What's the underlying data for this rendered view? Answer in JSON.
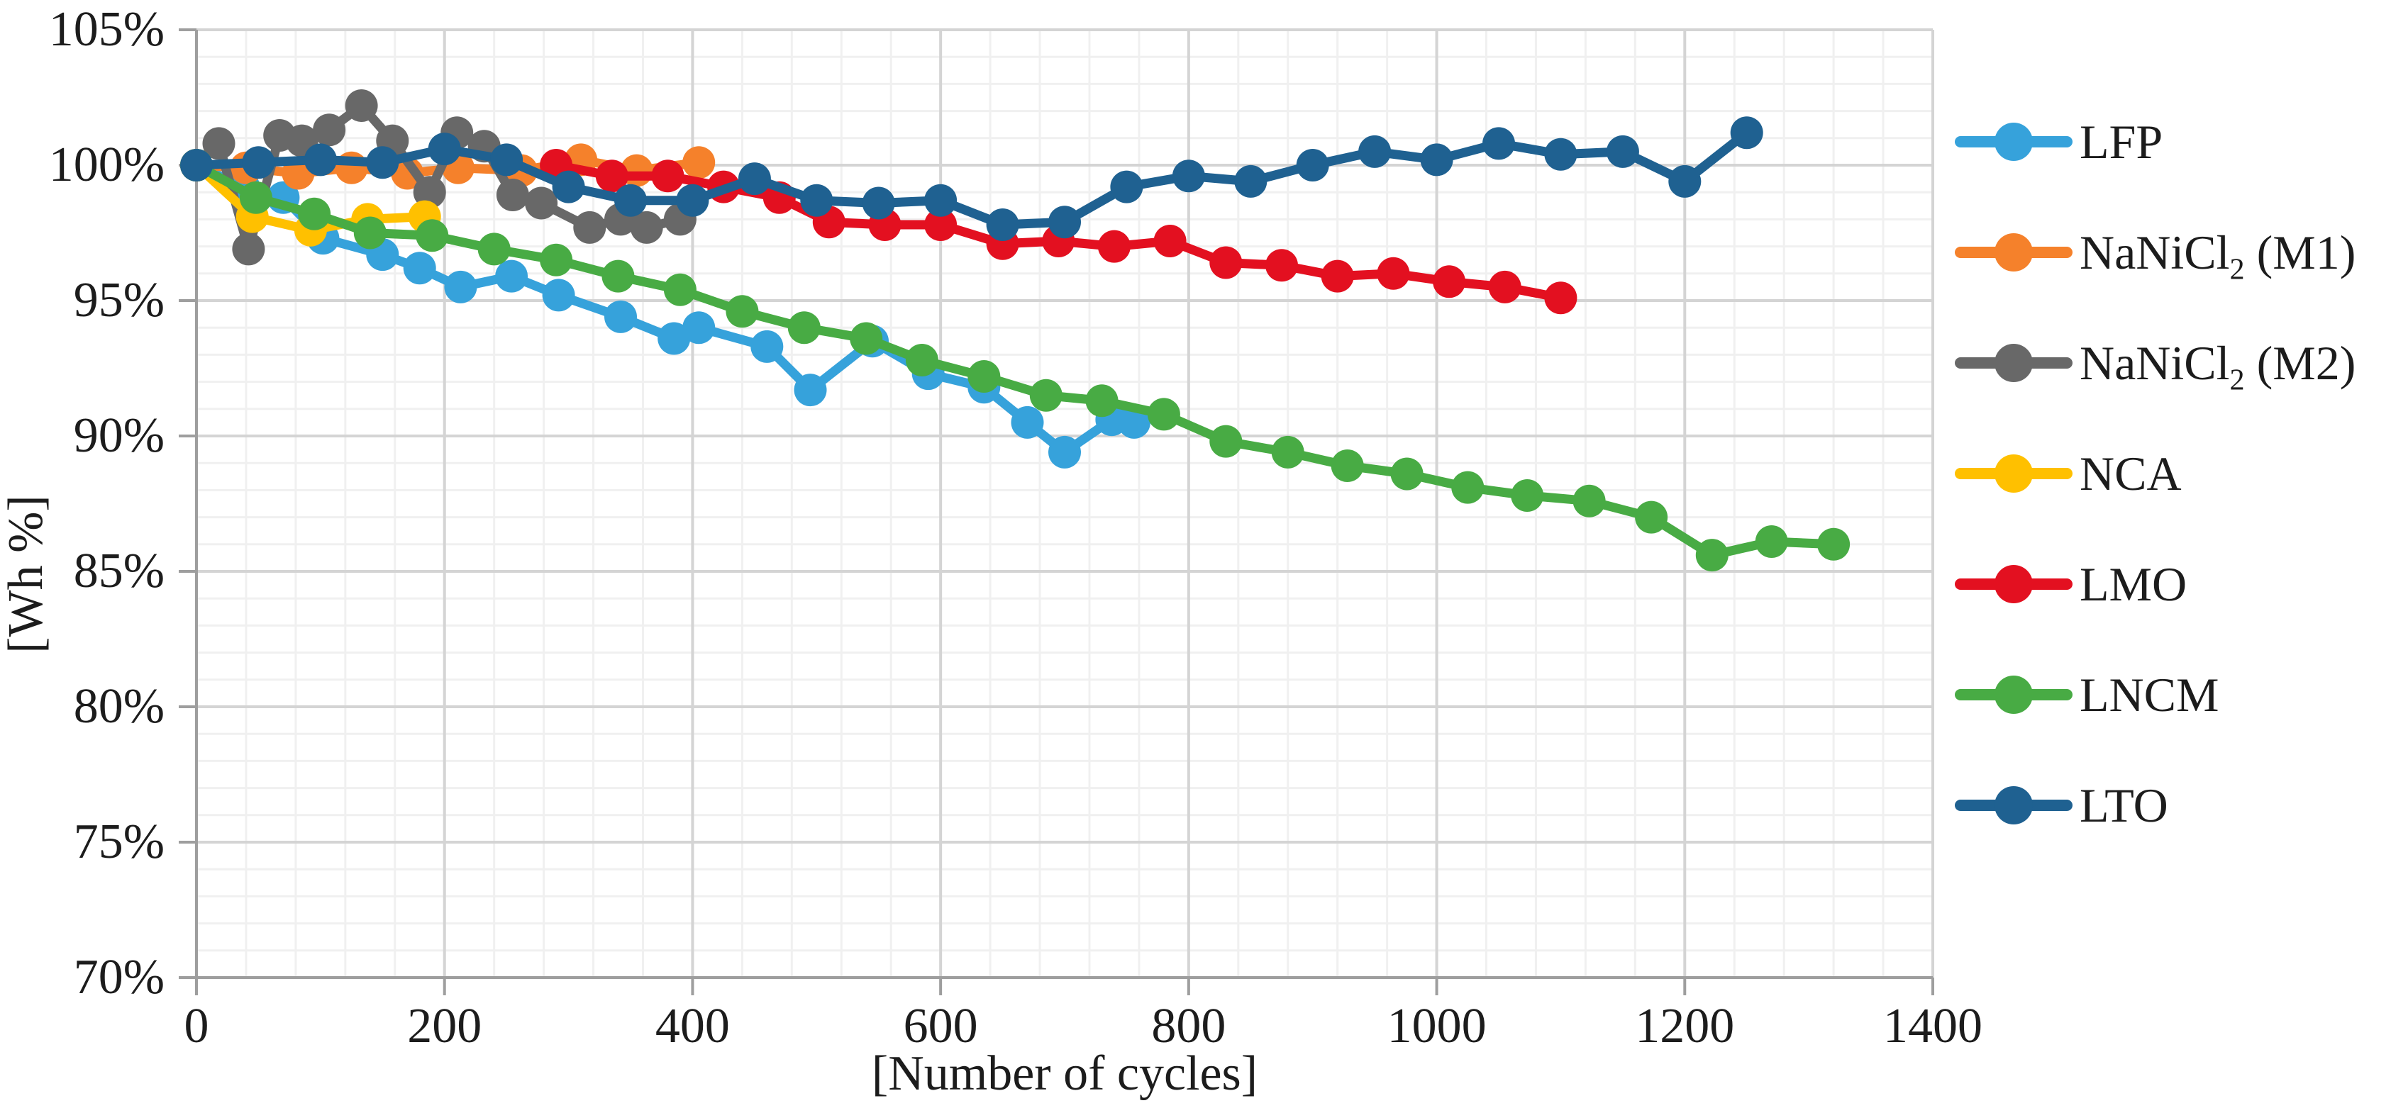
{
  "chart_data": {
    "type": "line",
    "title": "",
    "xlabel": "[Number of cycles]",
    "ylabel": "[Wh %]",
    "xlim": [
      0,
      1400
    ],
    "ylim": [
      70,
      105
    ],
    "x_ticks": [
      0,
      200,
      400,
      600,
      800,
      1000,
      1200,
      1400
    ],
    "y_ticks": [
      105,
      100,
      95,
      90,
      85,
      80,
      75,
      70
    ],
    "y_tick_suffix": "%",
    "x_minor_step": 40,
    "y_minor_step": 1,
    "grid": "major and minor, both axes",
    "legend_position": "right",
    "series": [
      {
        "name": "LFP",
        "label": "LFP",
        "label_pre": "LFP",
        "label_sub": "",
        "label_post": "",
        "color": "#36A2DB",
        "points": [
          [
            0,
            100
          ],
          [
            38,
            99.2
          ],
          [
            70,
            98.8
          ],
          [
            102,
            97.3
          ],
          [
            150,
            96.7
          ],
          [
            180,
            96.2
          ],
          [
            213,
            95.5
          ],
          [
            254,
            95.9
          ],
          [
            292,
            95.2
          ],
          [
            342,
            94.4
          ],
          [
            385,
            93.6
          ],
          [
            405,
            94.0
          ],
          [
            460,
            93.3
          ],
          [
            495,
            91.7
          ],
          [
            545,
            93.5
          ],
          [
            590,
            92.3
          ],
          [
            635,
            91.8
          ],
          [
            670,
            90.5
          ],
          [
            700,
            89.4
          ],
          [
            738,
            90.6
          ],
          [
            756,
            90.5
          ]
        ]
      },
      {
        "name": "NaNiCl2 (M1)",
        "label": "NaNiCl2 (M1)",
        "label_pre": "NaNiCl",
        "label_sub": "2",
        "label_post": " (M1)",
        "color": "#F5812B",
        "points": [
          [
            0,
            100
          ],
          [
            40,
            99.9
          ],
          [
            82,
            99.7
          ],
          [
            125,
            99.9
          ],
          [
            170,
            99.7
          ],
          [
            211,
            99.9
          ],
          [
            262,
            99.8
          ],
          [
            310,
            100.2
          ],
          [
            355,
            99.8
          ],
          [
            405,
            100.1
          ]
        ]
      },
      {
        "name": "NaNiCl2 (M2)",
        "label": "NaNiCl2 (M2)",
        "label_pre": "NaNiCl",
        "label_sub": "2",
        "label_post": " (M2)",
        "color": "#686868",
        "points": [
          [
            0,
            100
          ],
          [
            18,
            100.8
          ],
          [
            42,
            96.9
          ],
          [
            67,
            101.1
          ],
          [
            85,
            100.9
          ],
          [
            107,
            101.3
          ],
          [
            133,
            102.2
          ],
          [
            158,
            100.9
          ],
          [
            188,
            99.0
          ],
          [
            210,
            101.2
          ],
          [
            232,
            100.7
          ],
          [
            255,
            98.9
          ],
          [
            278,
            98.6
          ],
          [
            317,
            97.7
          ],
          [
            342,
            98.0
          ],
          [
            363,
            97.7
          ],
          [
            390,
            98.0
          ]
        ]
      },
      {
        "name": "NCA",
        "label": "NCA",
        "label_pre": "NCA",
        "label_sub": "",
        "label_post": "",
        "color": "#FFC000",
        "points": [
          [
            0,
            100
          ],
          [
            45,
            98.1
          ],
          [
            92,
            97.6
          ],
          [
            138,
            98.0
          ],
          [
            184,
            98.1
          ]
        ]
      },
      {
        "name": "LMO",
        "label": "LMO",
        "label_pre": "LMO",
        "label_sub": "",
        "label_post": "",
        "color": "#E31020",
        "points": [
          [
            290,
            100
          ],
          [
            335,
            99.6
          ],
          [
            380,
            99.6
          ],
          [
            425,
            99.2
          ],
          [
            470,
            98.8
          ],
          [
            510,
            97.9
          ],
          [
            555,
            97.8
          ],
          [
            600,
            97.8
          ],
          [
            650,
            97.1
          ],
          [
            695,
            97.2
          ],
          [
            740,
            97.0
          ],
          [
            785,
            97.2
          ],
          [
            830,
            96.4
          ],
          [
            875,
            96.3
          ],
          [
            920,
            95.9
          ],
          [
            965,
            96.0
          ],
          [
            1010,
            95.7
          ],
          [
            1055,
            95.5
          ],
          [
            1100,
            95.1
          ]
        ]
      },
      {
        "name": "LNCM",
        "label": "LNCM",
        "label_pre": "LNCM",
        "label_sub": "",
        "label_post": "",
        "color": "#48AB44",
        "points": [
          [
            0,
            100
          ],
          [
            48,
            98.8
          ],
          [
            95,
            98.2
          ],
          [
            140,
            97.5
          ],
          [
            190,
            97.4
          ],
          [
            240,
            96.9
          ],
          [
            290,
            96.5
          ],
          [
            340,
            95.9
          ],
          [
            390,
            95.4
          ],
          [
            440,
            94.6
          ],
          [
            490,
            94.0
          ],
          [
            540,
            93.6
          ],
          [
            585,
            92.8
          ],
          [
            635,
            92.2
          ],
          [
            685,
            91.5
          ],
          [
            730,
            91.3
          ],
          [
            780,
            90.8
          ],
          [
            830,
            89.8
          ],
          [
            880,
            89.4
          ],
          [
            928,
            88.9
          ],
          [
            976,
            88.6
          ],
          [
            1025,
            88.1
          ],
          [
            1073,
            87.8
          ],
          [
            1123,
            87.6
          ],
          [
            1173,
            87.0
          ],
          [
            1222,
            85.6
          ],
          [
            1270,
            86.1
          ],
          [
            1320,
            86.0
          ]
        ]
      },
      {
        "name": "LTO",
        "label": "LTO",
        "label_pre": "LTO",
        "label_sub": "",
        "label_post": "",
        "color": "#1F6191",
        "points": [
          [
            0,
            100
          ],
          [
            50,
            100.1
          ],
          [
            100,
            100.2
          ],
          [
            150,
            100.1
          ],
          [
            200,
            100.6
          ],
          [
            250,
            100.2
          ],
          [
            300,
            99.2
          ],
          [
            350,
            98.7
          ],
          [
            400,
            98.7
          ],
          [
            450,
            99.5
          ],
          [
            500,
            98.7
          ],
          [
            550,
            98.6
          ],
          [
            600,
            98.7
          ],
          [
            650,
            97.8
          ],
          [
            700,
            97.9
          ],
          [
            750,
            99.2
          ],
          [
            800,
            99.6
          ],
          [
            850,
            99.4
          ],
          [
            900,
            100.0
          ],
          [
            950,
            100.5
          ],
          [
            1000,
            100.2
          ],
          [
            1050,
            100.8
          ],
          [
            1100,
            100.4
          ],
          [
            1150,
            100.5
          ],
          [
            1200,
            99.4
          ],
          [
            1250,
            101.2
          ]
        ]
      }
    ]
  }
}
